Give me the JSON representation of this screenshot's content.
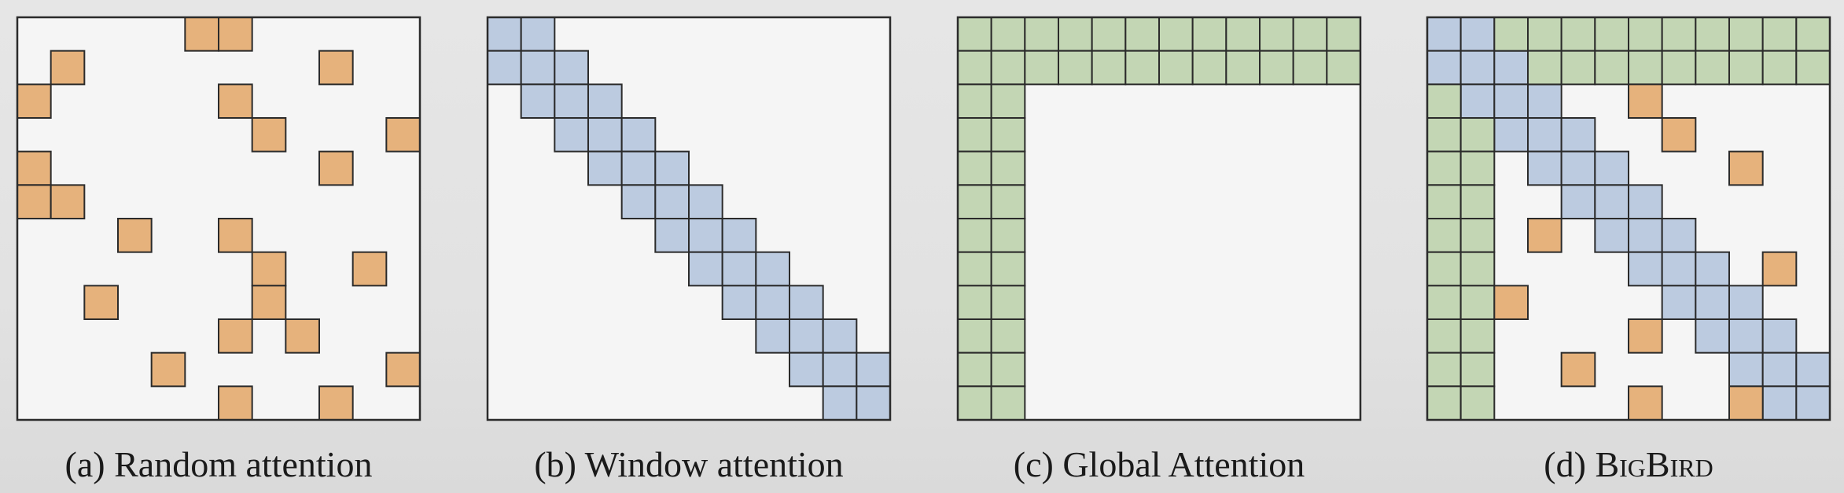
{
  "grid_size": 12,
  "colors": {
    "random": "#e6b27c",
    "window": "#bccbe0",
    "global": "#c3d6b4",
    "cell_border": "#2b2b2b",
    "frame": "#2b2b2b",
    "panel_background": "#f5f5f5"
  },
  "panels": [
    {
      "id": "a",
      "caption_prefix": "(a) ",
      "caption_name": "Random attention",
      "caption_smallcaps": false,
      "random_cells": [
        [
          0,
          5
        ],
        [
          0,
          6
        ],
        [
          1,
          1
        ],
        [
          1,
          9
        ],
        [
          2,
          0
        ],
        [
          2,
          6
        ],
        [
          3,
          7
        ],
        [
          3,
          11
        ],
        [
          4,
          0
        ],
        [
          4,
          9
        ],
        [
          5,
          0
        ],
        [
          5,
          1
        ],
        [
          6,
          3
        ],
        [
          6,
          6
        ],
        [
          7,
          7
        ],
        [
          7,
          10
        ],
        [
          8,
          2
        ],
        [
          8,
          7
        ],
        [
          9,
          6
        ],
        [
          9,
          8
        ],
        [
          10,
          4
        ],
        [
          10,
          11
        ],
        [
          11,
          6
        ],
        [
          11,
          9
        ]
      ],
      "window_cells": [],
      "global_rows": [],
      "global_cols": []
    },
    {
      "id": "b",
      "caption_prefix": "(b) ",
      "caption_name": "Window attention",
      "caption_smallcaps": false,
      "random_cells": [],
      "window_width": 1,
      "global_rows": [],
      "global_cols": []
    },
    {
      "id": "c",
      "caption_prefix": "(c) ",
      "caption_name": "Global Attention",
      "caption_smallcaps": false,
      "random_cells": [],
      "window_width": -1,
      "global_rows": [
        0,
        1
      ],
      "global_cols": [
        0,
        1
      ]
    },
    {
      "id": "d",
      "caption_prefix": "(d) ",
      "caption_name": "BigBird",
      "caption_smallcaps": true,
      "random_cells": [
        [
          2,
          6
        ],
        [
          3,
          7
        ],
        [
          4,
          9
        ],
        [
          6,
          3
        ],
        [
          7,
          10
        ],
        [
          8,
          2
        ],
        [
          9,
          6
        ],
        [
          10,
          4
        ],
        [
          11,
          6
        ],
        [
          11,
          9
        ]
      ],
      "window_width": 1,
      "global_rows": [
        0,
        1
      ],
      "global_cols": [
        0,
        1
      ]
    }
  ]
}
